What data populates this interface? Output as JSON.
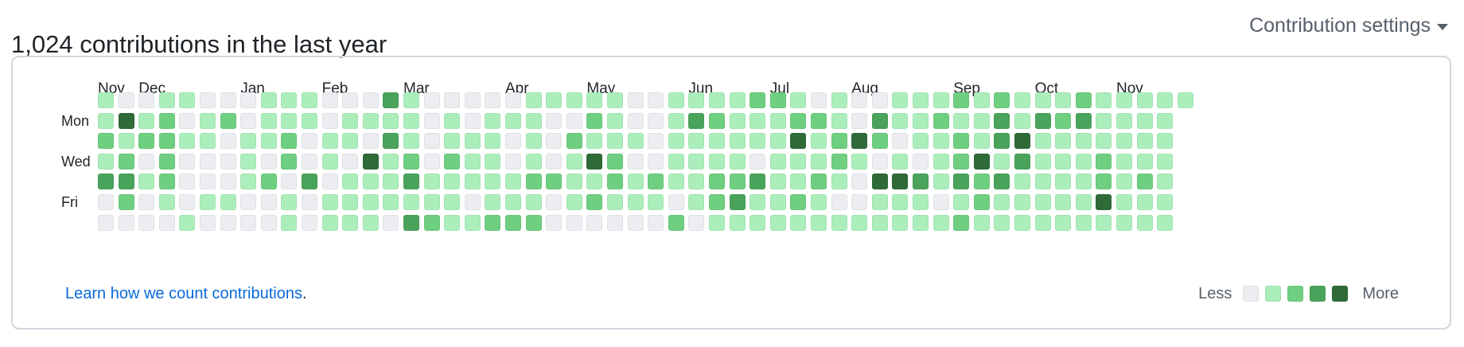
{
  "header": {
    "title": "1,024 contributions in the last year",
    "settings_label": "Contribution settings",
    "settings_icon": "caret-down-icon"
  },
  "calendar": {
    "months": [
      "Nov",
      "Dec",
      "Jan",
      "Feb",
      "Mar",
      "Apr",
      "May",
      "Jun",
      "Jul",
      "Aug",
      "Sep",
      "Oct",
      "Nov"
    ],
    "day_labels": [
      "Mon",
      "Wed",
      "Fri"
    ],
    "colors": [
      "#ebedf0",
      "#aceebb",
      "#6fcf80",
      "#4aa35a",
      "#2e6b39"
    ],
    "levels_by_row": [
      [
        1,
        0,
        0,
        1,
        1,
        0,
        0,
        0,
        1,
        1,
        1,
        0,
        0,
        0,
        3,
        1,
        0,
        0,
        0,
        0,
        0,
        1,
        1,
        1,
        1,
        1,
        0,
        0,
        1,
        1,
        1,
        1,
        2,
        2,
        1,
        0,
        1,
        0,
        0,
        1,
        1,
        1,
        2,
        1,
        2,
        1,
        1,
        1,
        2,
        1,
        1,
        1,
        1,
        1
      ],
      [
        1,
        4,
        1,
        2,
        0,
        1,
        2,
        0,
        1,
        1,
        1,
        0,
        1,
        1,
        1,
        1,
        0,
        1,
        0,
        1,
        1,
        1,
        0,
        0,
        2,
        1,
        0,
        0,
        1,
        3,
        2,
        1,
        1,
        1,
        2,
        2,
        1,
        0,
        3,
        1,
        1,
        2,
        1,
        1,
        3,
        1,
        3,
        2,
        3,
        1,
        1,
        1,
        1
      ],
      [
        2,
        1,
        2,
        2,
        1,
        1,
        0,
        1,
        1,
        2,
        0,
        1,
        1,
        0,
        3,
        1,
        0,
        1,
        1,
        1,
        0,
        1,
        0,
        2,
        1,
        1,
        1,
        0,
        1,
        1,
        1,
        1,
        1,
        1,
        4,
        1,
        2,
        4,
        2,
        0,
        1,
        1,
        2,
        1,
        3,
        4,
        1,
        1,
        1,
        1,
        1,
        1,
        1
      ],
      [
        1,
        2,
        0,
        2,
        0,
        0,
        0,
        1,
        0,
        2,
        0,
        1,
        0,
        4,
        1,
        2,
        0,
        2,
        1,
        1,
        0,
        1,
        0,
        1,
        4,
        2,
        0,
        0,
        1,
        1,
        1,
        1,
        0,
        1,
        1,
        1,
        2,
        1,
        0,
        1,
        0,
        1,
        2,
        4,
        1,
        3,
        1,
        1,
        1,
        2,
        1,
        1,
        1
      ],
      [
        3,
        3,
        1,
        2,
        0,
        0,
        0,
        1,
        2,
        0,
        3,
        0,
        1,
        1,
        1,
        3,
        1,
        1,
        1,
        1,
        1,
        2,
        2,
        1,
        1,
        2,
        1,
        2,
        1,
        1,
        2,
        2,
        3,
        1,
        1,
        2,
        1,
        0,
        4,
        4,
        3,
        1,
        3,
        2,
        3,
        1,
        1,
        1,
        1,
        2,
        1,
        2,
        1
      ],
      [
        0,
        2,
        0,
        1,
        0,
        1,
        1,
        0,
        0,
        1,
        0,
        1,
        1,
        1,
        1,
        1,
        1,
        1,
        0,
        1,
        1,
        1,
        0,
        1,
        2,
        1,
        1,
        1,
        0,
        1,
        2,
        3,
        1,
        1,
        2,
        1,
        0,
        0,
        1,
        1,
        1,
        0,
        1,
        2,
        1,
        1,
        1,
        1,
        1,
        4,
        1,
        1,
        1
      ],
      [
        0,
        0,
        0,
        0,
        1,
        0,
        0,
        0,
        0,
        1,
        0,
        1,
        1,
        1,
        0,
        3,
        2,
        1,
        1,
        2,
        2,
        2,
        0,
        0,
        0,
        0,
        0,
        0,
        2,
        0,
        1,
        1,
        1,
        1,
        1,
        1,
        1,
        1,
        1,
        1,
        1,
        1,
        2,
        1,
        1,
        1,
        1,
        1,
        1,
        1,
        1,
        1,
        1
      ]
    ],
    "learn_link": "Learn how we count contributions",
    "learn_trailing": ".",
    "legend": {
      "less": "Less",
      "more": "More"
    }
  }
}
